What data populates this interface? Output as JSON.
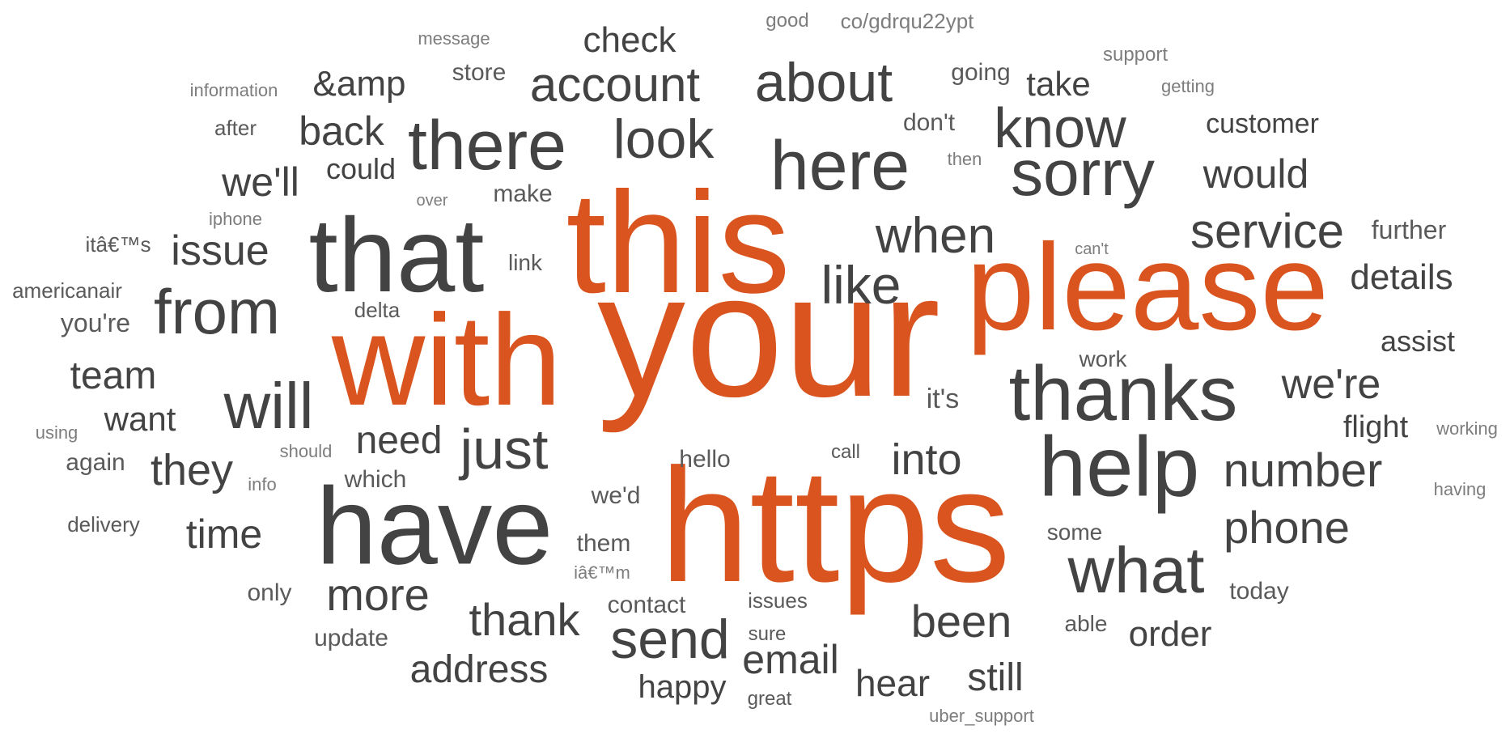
{
  "colors": {
    "highlight": "#d9541e",
    "dark": "#434343",
    "mid": "#5a5a5a",
    "light": "#7d7d7d",
    "background": "#ffffff"
  },
  "words": [
    "your",
    "https",
    "this",
    "with",
    "please",
    "that",
    "have",
    "help",
    "thanks",
    "there",
    "here",
    "sorry",
    "will",
    "from",
    "account",
    "about",
    "know",
    "look",
    "what",
    "send",
    "just",
    "when",
    "like",
    "service",
    "number",
    "phone",
    "into",
    "thank",
    "been",
    "more",
    "address",
    "email",
    "back",
    "would",
    "they",
    "we're",
    "issue",
    "time",
    "team",
    "need",
    "we'll",
    "check",
    "&amp",
    "customer",
    "still",
    "details",
    "hear",
    "order",
    "want",
    "happy",
    "take",
    "flight",
    "assist",
    "could",
    "further",
    "don't",
    "you're",
    "contact",
    "store",
    "today",
    "again",
    "going",
    "update",
    "hello",
    "which",
    "make",
    "we'd",
    "them",
    "it's",
    "only",
    "link",
    "work",
    "some",
    "issues",
    "delivery",
    "delta",
    "americanair",
    "itâ€™s",
    "after",
    "able",
    "sure",
    "great",
    "call",
    "message",
    "good",
    "co/gdrqu22ypt",
    "support",
    "getting",
    "information",
    "then",
    "iphone",
    "over",
    "can't",
    "working",
    "using",
    "should",
    "info",
    "having",
    "iâ€™m",
    "uber_support"
  ]
}
